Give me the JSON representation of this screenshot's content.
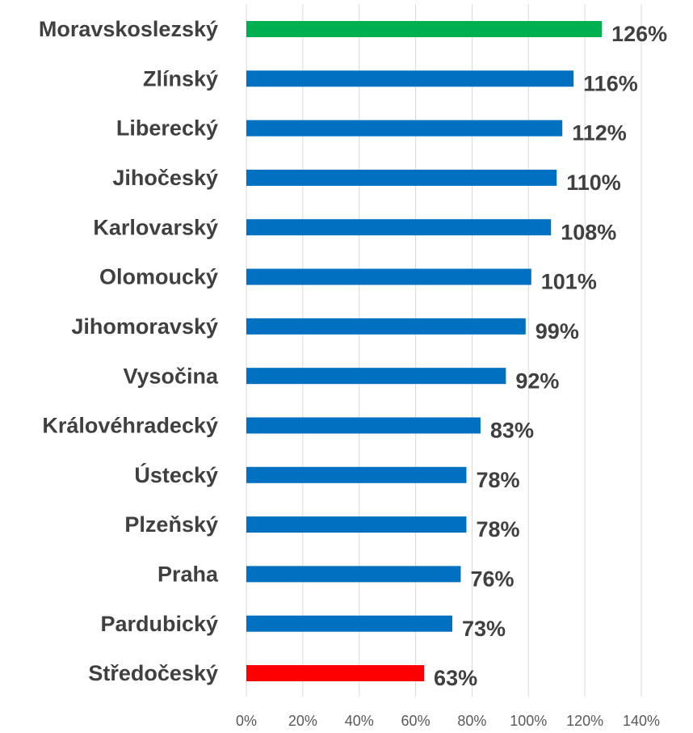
{
  "chart_data": {
    "type": "bar",
    "orientation": "horizontal",
    "categories": [
      "Moravskoslezský",
      "Zlínský",
      "Liberecký",
      "Jihočeský",
      "Karlovarský",
      "Olomoucký",
      "Jihomoravský",
      "Vysočina",
      "Královéhradecký",
      "Ústecký",
      "Plzeňský",
      "Praha",
      "Pardubický",
      "Středočeský"
    ],
    "values": [
      126,
      116,
      112,
      110,
      108,
      101,
      99,
      92,
      83,
      78,
      78,
      76,
      73,
      63
    ],
    "value_labels": [
      "126%",
      "116%",
      "112%",
      "110%",
      "108%",
      "101%",
      "99%",
      "92%",
      "83%",
      "78%",
      "78%",
      "76%",
      "73%",
      "63%"
    ],
    "colors": [
      "#00b050",
      "#0070c0",
      "#0070c0",
      "#0070c0",
      "#0070c0",
      "#0070c0",
      "#0070c0",
      "#0070c0",
      "#0070c0",
      "#0070c0",
      "#0070c0",
      "#0070c0",
      "#0070c0",
      "#ff0000"
    ],
    "xlim": [
      0,
      140
    ],
    "xticks": [
      {
        "value": 0,
        "label": "0%"
      },
      {
        "value": 20,
        "label": "20%"
      },
      {
        "value": 40,
        "label": "40%"
      },
      {
        "value": 60,
        "label": "60%"
      },
      {
        "value": 80,
        "label": "80%"
      },
      {
        "value": 100,
        "label": "100%"
      },
      {
        "value": 120,
        "label": "120%"
      },
      {
        "value": 140,
        "label": "140%"
      }
    ],
    "grid": true
  }
}
